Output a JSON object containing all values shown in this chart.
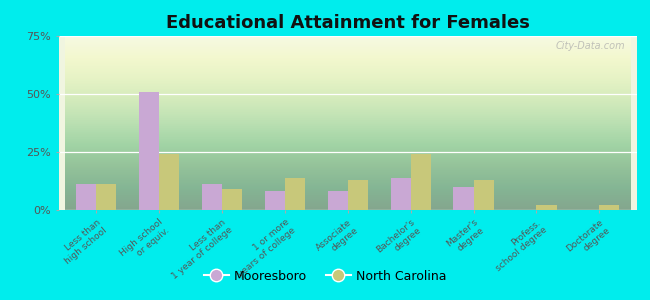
{
  "title": "Educational Attainment for Females",
  "categories": [
    "Less than\nhigh school",
    "High school\nor equiv.",
    "Less than\n1 year of college",
    "1 or more\nyears of college",
    "Associate\ndegree",
    "Bachelor's\ndegree",
    "Master's\ndegree",
    "Profess.\nschool degree",
    "Doctorate\ndegree"
  ],
  "mooresboro": [
    11,
    51,
    11,
    8,
    8,
    14,
    10,
    0,
    0
  ],
  "north_carolina": [
    11,
    24,
    9,
    14,
    13,
    24,
    13,
    2,
    2
  ],
  "color_mooresboro": "#c9a8d4",
  "color_nc": "#c8c87a",
  "background_outer": "#00eded",
  "ylim": [
    0,
    75
  ],
  "yticks": [
    0,
    25,
    50,
    75
  ],
  "ytick_labels": [
    "0%",
    "25%",
    "50%",
    "75%"
  ],
  "title_fontsize": 13,
  "tick_fontsize": 6.5,
  "legend_fontsize": 9,
  "bar_width": 0.32,
  "watermark": "City-Data.com"
}
